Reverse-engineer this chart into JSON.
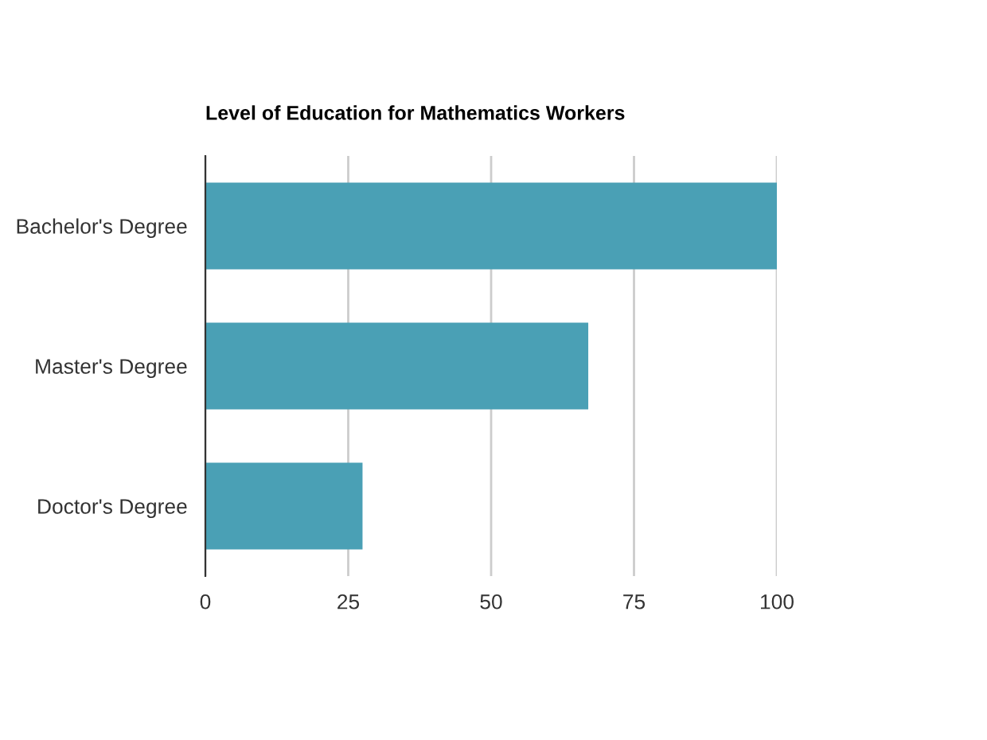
{
  "chart_data": {
    "type": "bar",
    "orientation": "horizontal",
    "title": "Level of Education for Mathematics Workers",
    "categories": [
      "Bachelor's Degree",
      "Master's Degree",
      "Doctor's Degree"
    ],
    "values": [
      100,
      67,
      27.5
    ],
    "color": "#4aa0b5",
    "xlim": [
      0,
      100
    ],
    "xticks": [
      0,
      25,
      50,
      75,
      100
    ],
    "grid": "x",
    "legend": false
  }
}
